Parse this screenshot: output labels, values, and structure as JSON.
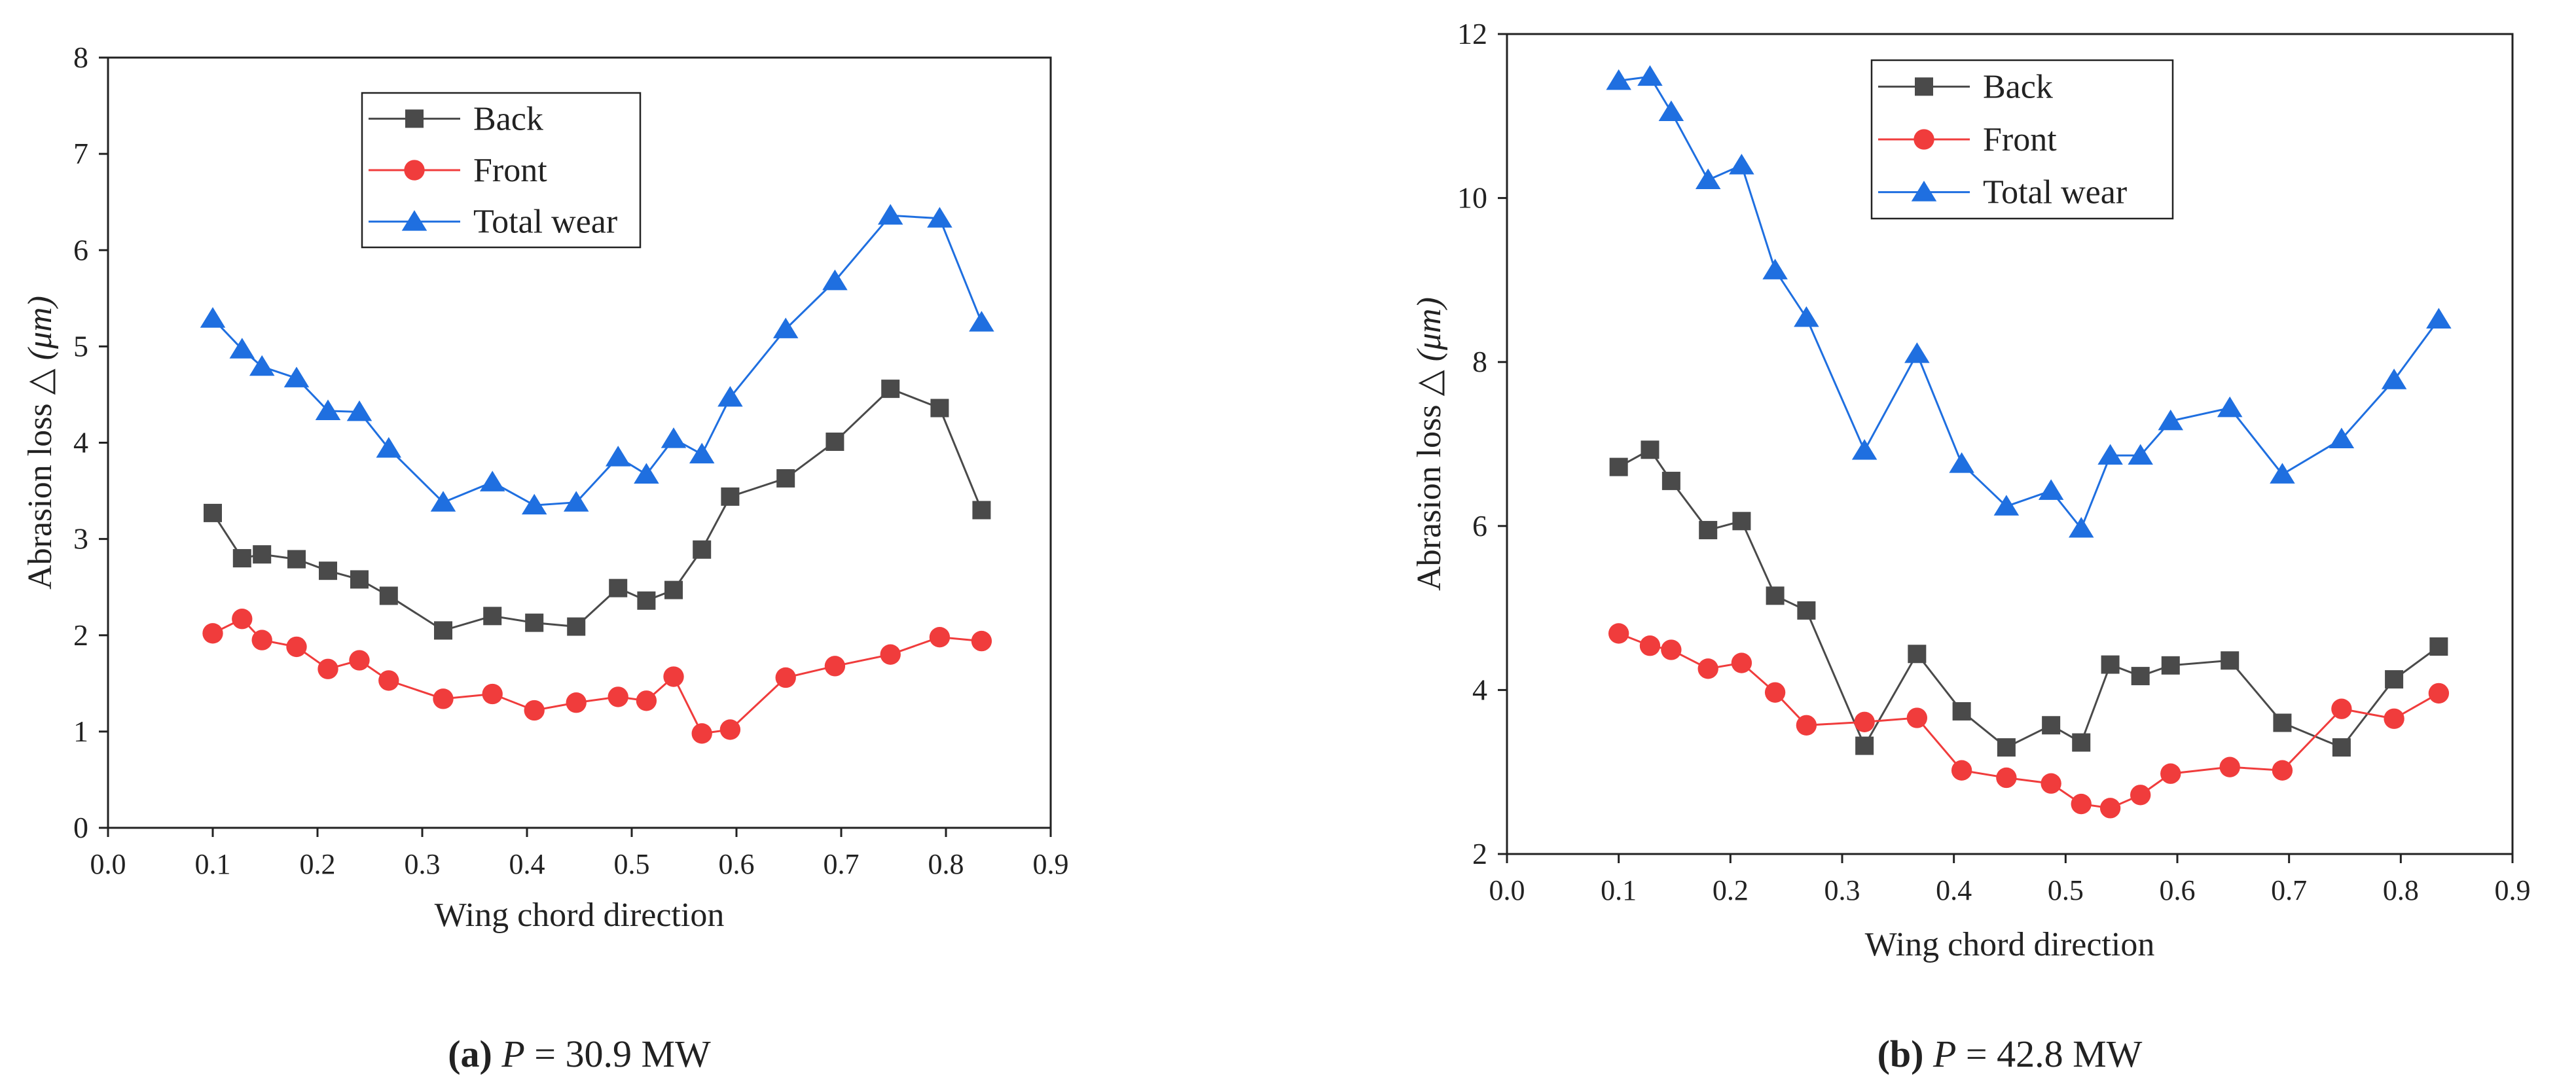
{
  "panels": [
    {
      "caption": {
        "letter": "(a)",
        "p_var": "P",
        "rest": " = 30.9 MW"
      },
      "xlabel": "Wing chord direction",
      "ylabel": {
        "main": "Abrasion loss △ ",
        "unit": "(μm)"
      },
      "legend": [
        "Back",
        "Front",
        "Total wear"
      ]
    },
    {
      "caption": {
        "letter": "(b)",
        "p_var": "P",
        "rest": " = 42.8 MW"
      },
      "xlabel": "Wing chord direction",
      "ylabel": {
        "main": "Abrasion loss △ ",
        "unit": "(μm)"
      },
      "legend": [
        "Back",
        "Front",
        "Total wear"
      ]
    }
  ],
  "colors": {
    "back": "#4a4a4a",
    "front": "#f03c3c",
    "total": "#1f6fe0",
    "axis": "#222222"
  },
  "chart_data": [
    {
      "type": "line",
      "xlabel": "Wing chord direction",
      "ylabel": "Abrasion loss △ (μm)",
      "xlim": [
        0.0,
        0.9
      ],
      "ylim": [
        0,
        8
      ],
      "xticks": [
        "0.0",
        "0.1",
        "0.2",
        "0.3",
        "0.4",
        "0.5",
        "0.6",
        "0.7",
        "0.8",
        "0.9"
      ],
      "yticks": [
        "0",
        "1",
        "2",
        "3",
        "4",
        "5",
        "6",
        "7",
        "8"
      ],
      "legend_position": "top-left",
      "grid": false,
      "x": [
        0.1,
        0.128,
        0.147,
        0.18,
        0.21,
        0.24,
        0.268,
        0.32,
        0.367,
        0.407,
        0.447,
        0.487,
        0.514,
        0.54,
        0.567,
        0.594,
        0.647,
        0.694,
        0.747,
        0.794,
        0.834
      ],
      "series": [
        {
          "name": "Back",
          "marker": "square",
          "values": [
            3.27,
            2.8,
            2.84,
            2.79,
            2.67,
            2.58,
            2.41,
            2.05,
            2.2,
            2.13,
            2.09,
            2.49,
            2.36,
            2.47,
            2.89,
            3.44,
            3.63,
            4.01,
            4.56,
            4.36,
            3.3
          ]
        },
        {
          "name": "Front",
          "marker": "circle",
          "values": [
            2.02,
            2.17,
            1.95,
            1.88,
            1.65,
            1.74,
            1.53,
            1.34,
            1.39,
            1.22,
            1.3,
            1.36,
            1.32,
            1.57,
            0.98,
            1.02,
            1.56,
            1.68,
            1.8,
            1.98,
            1.94
          ]
        },
        {
          "name": "Total wear",
          "marker": "triangle",
          "values": [
            5.29,
            4.97,
            4.79,
            4.67,
            4.33,
            4.32,
            3.94,
            3.38,
            3.59,
            3.35,
            3.38,
            3.85,
            3.67,
            4.04,
            3.88,
            4.47,
            5.18,
            5.68,
            6.36,
            6.33,
            5.25
          ]
        }
      ]
    },
    {
      "type": "line",
      "xlabel": "Wing chord direction",
      "ylabel": "Abrasion loss △ (μm)",
      "xlim": [
        0.0,
        0.9
      ],
      "ylim": [
        2,
        12
      ],
      "xticks": [
        "0.0",
        "0.1",
        "0.2",
        "0.3",
        "0.4",
        "0.5",
        "0.6",
        "0.7",
        "0.8",
        "0.9"
      ],
      "yticks": [
        "2",
        "4",
        "6",
        "8",
        "10",
        "12"
      ],
      "legend_position": "top-left",
      "grid": false,
      "x": [
        0.1,
        0.128,
        0.147,
        0.18,
        0.21,
        0.24,
        0.268,
        0.32,
        0.367,
        0.407,
        0.447,
        0.487,
        0.514,
        0.54,
        0.567,
        0.594,
        0.647,
        0.694,
        0.747,
        0.794,
        0.834
      ],
      "series": [
        {
          "name": "Back",
          "marker": "square",
          "values": [
            6.72,
            6.93,
            6.55,
            5.95,
            6.06,
            5.15,
            4.97,
            3.32,
            4.44,
            3.74,
            3.3,
            3.57,
            3.36,
            4.31,
            4.17,
            4.3,
            4.36,
            3.6,
            3.3,
            4.13,
            4.53
          ]
        },
        {
          "name": "Front",
          "marker": "circle",
          "values": [
            4.69,
            4.54,
            4.49,
            4.26,
            4.33,
            3.97,
            3.57,
            3.61,
            3.66,
            3.02,
            2.93,
            2.86,
            2.61,
            2.56,
            2.72,
            2.98,
            3.06,
            3.02,
            3.77,
            3.65,
            3.96
          ]
        },
        {
          "name": "Total wear",
          "marker": "triangle",
          "values": [
            11.43,
            11.48,
            11.05,
            10.22,
            10.4,
            9.12,
            8.54,
            6.92,
            8.1,
            6.76,
            6.24,
            6.43,
            5.97,
            6.86,
            6.86,
            7.28,
            7.44,
            6.63,
            7.06,
            7.78,
            8.52
          ]
        }
      ]
    }
  ]
}
